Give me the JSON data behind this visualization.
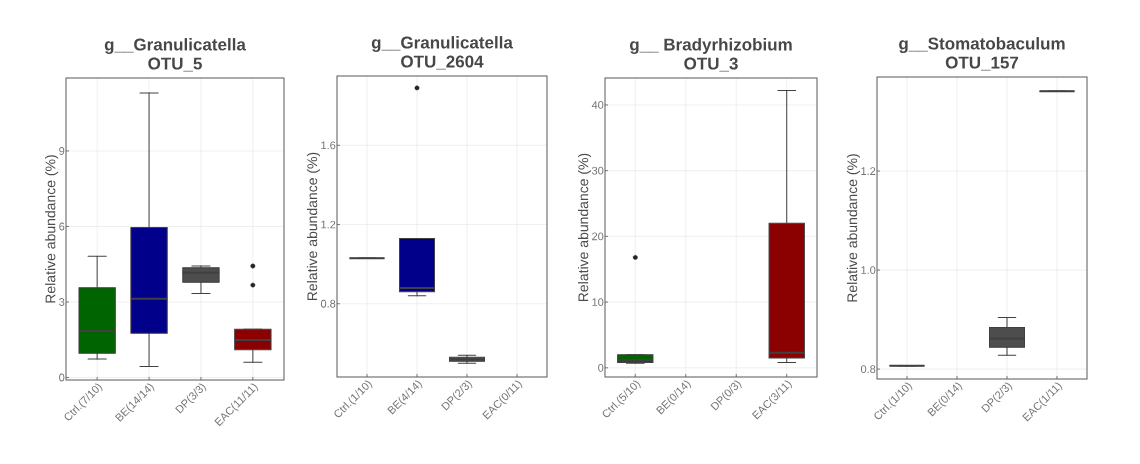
{
  "chart_data": [
    {
      "type": "box",
      "title": "g__Granulicatella",
      "subtitle": "OTU_5",
      "ylabel": "Relative abundance (%)",
      "categories": [
        "Ctrl.(7/10)",
        "BE(14/14)",
        "DP(3/3)",
        "EAC(11/11)"
      ],
      "colors": [
        "#006400",
        "#00008b",
        "#4d4d4d",
        "#8b0000"
      ],
      "ylim": [
        -0.1,
        11.9
      ],
      "yticks": [
        0,
        3,
        6,
        9
      ],
      "grid": true,
      "boxes": [
        {
          "low": 0.73,
          "q1": 0.96,
          "median": 1.85,
          "q3": 3.57,
          "high": 4.82
        },
        {
          "low": 0.44,
          "q1": 1.76,
          "median": 3.13,
          "q3": 5.96,
          "high": 11.3
        },
        {
          "low": 3.34,
          "q1": 3.78,
          "median": 4.16,
          "q3": 4.36,
          "high": 4.43
        },
        {
          "low": 0.61,
          "q1": 1.1,
          "median": 1.49,
          "q3": 1.92,
          "high": 1.92,
          "outliers": [
            3.67,
            4.43
          ]
        }
      ]
    },
    {
      "type": "box",
      "title": "g__Granulicatella",
      "subtitle": "OTU_2604",
      "ylabel": "Relative abundance (%)",
      "categories": [
        "Ctrl.(1/10)",
        "BE(4/14)",
        "DP(2/3)",
        "EAC(0/11)"
      ],
      "colors": [
        null,
        "#00008b",
        "#4d4d4d",
        null
      ],
      "ylim": [
        0.43,
        1.95
      ],
      "yticks": [
        0.8,
        1.2,
        1.6
      ],
      "grid": true,
      "boxes": [
        {
          "low": 1.03,
          "q1": 1.03,
          "median": 1.03,
          "q3": 1.03,
          "high": 1.03
        },
        {
          "low": 0.84,
          "q1": 0.86,
          "median": 0.88,
          "q3": 1.13,
          "high": 1.13,
          "outliers": [
            1.89
          ]
        },
        {
          "low": 0.5,
          "q1": 0.51,
          "median": 0.52,
          "q3": 0.53,
          "high": 0.54
        },
        null
      ]
    },
    {
      "type": "box",
      "title": "g__  Bradyrhizobium",
      "subtitle": "OTU_3",
      "ylabel": "Relative abundance (%)",
      "categories": [
        "Ctrl.(5/10)",
        "BE(0/14)",
        "DP(0/3)",
        "EAC(3/11)"
      ],
      "colors": [
        "#006400",
        "#00008b",
        "#4d4d4d",
        "#8b0000"
      ],
      "ylim": [
        -1.4,
        44.1
      ],
      "yticks": [
        0,
        10,
        20,
        30,
        40
      ],
      "grid": true,
      "boxes": [
        {
          "low": 0.7,
          "q1": 0.8,
          "median": 1.2,
          "q3": 2.0,
          "high": 2.0,
          "outliers": [
            16.8
          ]
        },
        null,
        null,
        {
          "low": 0.8,
          "q1": 1.5,
          "median": 2.3,
          "q3": 22.0,
          "high": 42.2
        }
      ]
    },
    {
      "type": "box",
      "title": "g__Stomatobaculum",
      "subtitle": "OTU_157",
      "ylabel": "Relative abundance (%)",
      "categories": [
        "Ctrl.(1/10)",
        "BE(0/14)",
        "DP(2/3)",
        "EAC(1/11)"
      ],
      "colors": [
        null,
        null,
        "#4d4d4d",
        null
      ],
      "ylim": [
        0.78,
        1.39
      ],
      "yticks": [
        0.8,
        {
          "value": 1.0,
          "label": "1.0"
        },
        1.2
      ],
      "grid": true,
      "boxes": [
        {
          "low": 0.807,
          "q1": 0.807,
          "median": 0.807,
          "q3": 0.807,
          "high": 0.807
        },
        null,
        {
          "low": 0.828,
          "q1": 0.844,
          "median": 0.862,
          "q3": 0.884,
          "high": 0.904
        },
        {
          "low": 1.361,
          "q1": 1.361,
          "median": 1.361,
          "q3": 1.361,
          "high": 1.361
        }
      ]
    }
  ]
}
